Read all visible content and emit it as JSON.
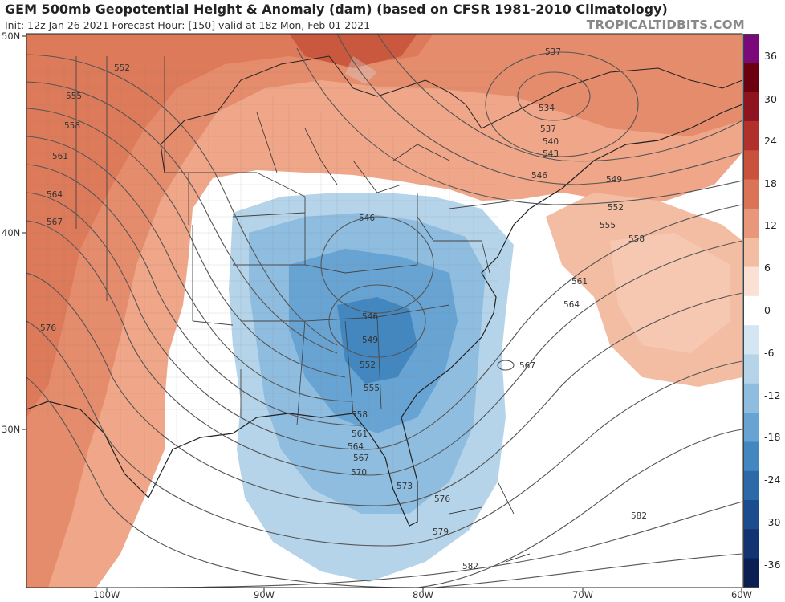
{
  "header": {
    "title": "GEM 500mb Geopotential Height & Anomaly (dam) (based on CFSR 1981-2010 Climatology)",
    "subtitle": "Init: 12z Jan 26 2021   Forecast Hour: [150]   valid at 18z Mon, Feb 01 2021",
    "credit": "TROPICALTIDBITS.COM"
  },
  "axes": {
    "lat_labels": [
      "50N",
      "40N",
      "30N"
    ],
    "lon_labels": [
      "100W",
      "90W",
      "80W",
      "70W",
      "60W"
    ]
  },
  "colorbar": {
    "ticks": [
      "36",
      "30",
      "24",
      "18",
      "12",
      "6",
      "0",
      "-6",
      "-12",
      "-18",
      "-24",
      "-30",
      "-36"
    ],
    "colors": [
      "#7a0a7a",
      "#6b0010",
      "#8e1520",
      "#b0302c",
      "#c9523c",
      "#db7356",
      "#e9977a",
      "#f3bda3",
      "#fbe1d3",
      "#ffffff",
      "#d4e6f1",
      "#b5d4e9",
      "#8fbde0",
      "#68a4d3",
      "#4387c0",
      "#2b69a8",
      "#1b4c8d",
      "#123472",
      "#0b1f52"
    ]
  },
  "contours": [
    "552",
    "555",
    "558",
    "561",
    "564",
    "567",
    "576",
    "537",
    "534",
    "537",
    "540",
    "543",
    "546",
    "549",
    "552",
    "555",
    "558",
    "561",
    "564",
    "567",
    "546",
    "546",
    "549",
    "552",
    "555",
    "558",
    "561",
    "564",
    "567",
    "570",
    "573",
    "576",
    "579",
    "582",
    "582"
  ]
}
